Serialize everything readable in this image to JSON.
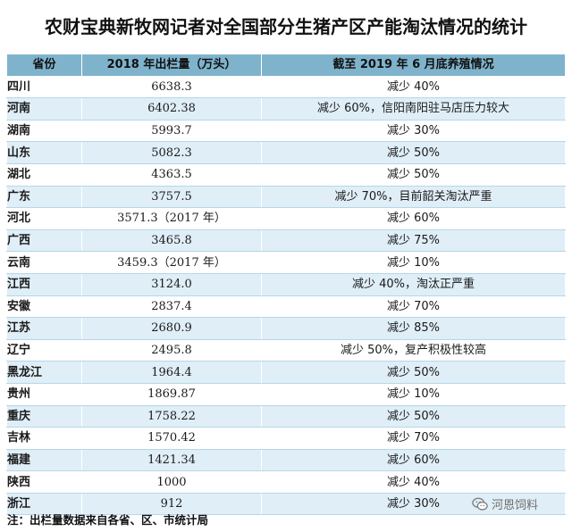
{
  "title": "农财宝典新牧网记者对全国部分生猪产区产能淘汰情况的统计",
  "headers": [
    "省份",
    "2018 年出栏量（万头）",
    "截至 2019 年 6 月底养殖情况"
  ],
  "rows": [
    [
      "四川",
      "6638.3",
      "减少 40%"
    ],
    [
      "河南",
      "6402.38",
      "减少 60%，信阳南阳驻马店压力较大"
    ],
    [
      "湖南",
      "5993.7",
      "减少 30%"
    ],
    [
      "山东",
      "5082.3",
      "减少 50%"
    ],
    [
      "湖北",
      "4363.5",
      "减少 50%"
    ],
    [
      "广东",
      "3757.5",
      "减少 70%，目前韶关淘汰严重"
    ],
    [
      "河北",
      "3571.3（2017 年）",
      "减少 60%"
    ],
    [
      "广西",
      "3465.8",
      "减少 75%"
    ],
    [
      "云南",
      "3459.3（2017 年）",
      "减少 10%"
    ],
    [
      "江西",
      "3124.0",
      "减少 40%，淘汰正严重"
    ],
    [
      "安徽",
      "2837.4",
      "减少 70%"
    ],
    [
      "江苏",
      "2680.9",
      "减少 85%"
    ],
    [
      "辽宁",
      "2495.8",
      "减少 50%，复产积极性较高"
    ],
    [
      "黑龙江",
      "1964.4",
      "减少 50%"
    ],
    [
      "贵州",
      "1869.87",
      "减少 10%"
    ],
    [
      "重庆",
      "1758.22",
      "减少 50%"
    ],
    [
      "吉林",
      "1570.42",
      "减少 70%"
    ],
    [
      "福建",
      "1421.34",
      "减少 60%"
    ],
    [
      "陕西",
      "1000",
      "减少 40%"
    ],
    [
      "浙江",
      "912",
      "减少 30%"
    ]
  ],
  "footnote": "注：出栏量数据来自各省、区、市统计局",
  "watermark": {
    "text": "河恩饲料",
    "icon": "wechat-icon"
  },
  "colors": {
    "header_bg": "#7fb3cc",
    "row_alt_bg": "#dfeef7",
    "row_bg": "#ffffff"
  }
}
